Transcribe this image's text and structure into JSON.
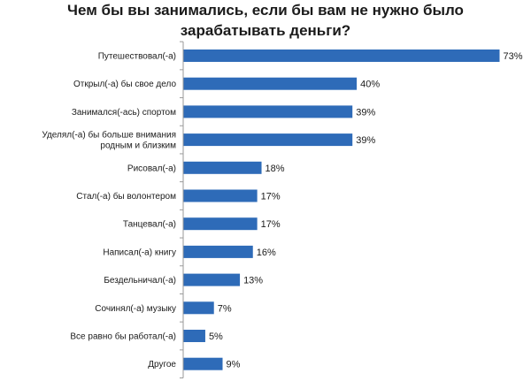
{
  "chart_data": {
    "type": "bar",
    "orientation": "horizontal",
    "title_lines": [
      "Чем бы вы занимались, если бы вам не нужно было",
      "зарабатывать деньги?"
    ],
    "categories": [
      [
        "Путешествовал(-а)"
      ],
      [
        "Открыл(-а) бы свое дело"
      ],
      [
        "Занимался(-ась) спортом"
      ],
      [
        "Уделял(-а) бы больше внимания",
        "родным и близким"
      ],
      [
        "Рисовал(-а)"
      ],
      [
        "Стал(-а) бы волонтером"
      ],
      [
        "Танцевал(-а)"
      ],
      [
        "Написал(-а) книгу"
      ],
      [
        "Бездельничал(-а)"
      ],
      [
        "Сочинял(-а) музыку"
      ],
      [
        "Все равно бы работал(-а)"
      ],
      [
        "Другое"
      ]
    ],
    "values": [
      73,
      40,
      39,
      39,
      18,
      17,
      17,
      16,
      13,
      7,
      5,
      9
    ],
    "value_labels": [
      "73%",
      "40%",
      "39%",
      "39%",
      "18%",
      "17%",
      "17%",
      "16%",
      "13%",
      "7%",
      "5%",
      "9%"
    ],
    "xlim": [
      0,
      73
    ],
    "grid": false,
    "legend": "none",
    "bar_color": "#2e6bb8",
    "axis_color": "#9a9a9a"
  }
}
